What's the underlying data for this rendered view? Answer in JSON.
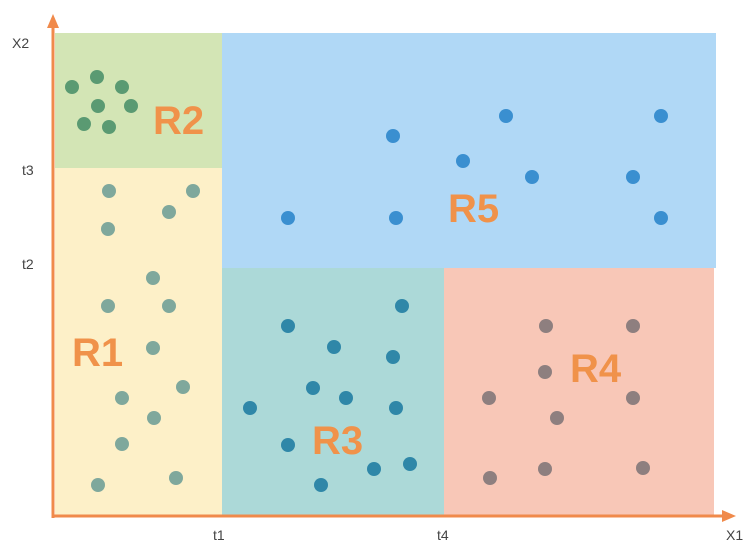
{
  "axes": {
    "x_label": "X1",
    "y_label": "X2",
    "x_ticks": [
      "t1",
      "t4"
    ],
    "y_ticks": [
      "t3",
      "t2"
    ],
    "axis_color": "#f08a4b"
  },
  "regions": [
    {
      "id": "r1",
      "label": "R1",
      "fill": "#fdf0c8",
      "point_color": "#7fa89c"
    },
    {
      "id": "r2",
      "label": "R2",
      "fill": "#d3e5b5",
      "point_color": "#5a9a72"
    },
    {
      "id": "r3",
      "label": "R3",
      "fill": "#acd9d8",
      "point_color": "#2f87a8"
    },
    {
      "id": "r4",
      "label": "R4",
      "fill": "#f8c7b7",
      "point_color": "#8e7f7f"
    },
    {
      "id": "r5",
      "label": "R5",
      "fill": "#b0d8f6",
      "point_color": "#3a8fd0"
    }
  ],
  "label_color": "#f0924a"
}
